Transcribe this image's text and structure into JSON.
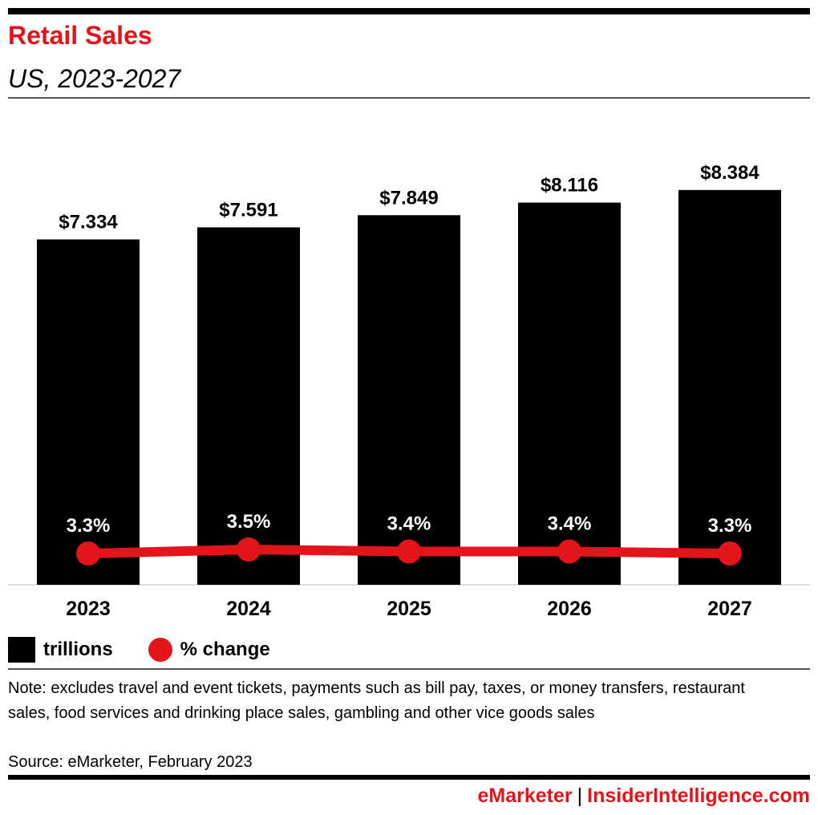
{
  "header": {
    "title": "Retail Sales",
    "subtitle": "US, 2023-2027"
  },
  "chart_data": {
    "type": "bar",
    "categories": [
      "2023",
      "2024",
      "2025",
      "2026",
      "2027"
    ],
    "series": [
      {
        "name": "trillions",
        "type": "bar",
        "values": [
          7.334,
          7.591,
          7.849,
          8.116,
          8.384
        ],
        "labels": [
          "$7.334",
          "$7.591",
          "$7.849",
          "$8.116",
          "$8.384"
        ]
      },
      {
        "name": "% change",
        "type": "line",
        "values": [
          3.3,
          3.5,
          3.4,
          3.4,
          3.3
        ],
        "labels": [
          "3.3%",
          "3.5%",
          "3.4%",
          "3.4%",
          "3.3%"
        ]
      }
    ],
    "grid": false,
    "legend_position": "bottom-left"
  },
  "legend": {
    "bar_label": "trillions",
    "line_label": "% change"
  },
  "footnote": {
    "note": "Note: excludes travel and event tickets, payments such as bill pay, taxes, or money transfers, restaurant sales, food services and drinking place sales, gambling and other vice goods sales",
    "source": "Source: eMarketer, February 2023"
  },
  "footer": {
    "brand_left": "eMarketer",
    "separator": "|",
    "brand_right": "InsiderIntelligence.com"
  },
  "colors": {
    "bar": "#000000",
    "line": "#e4141b",
    "title": "#e4141b"
  }
}
